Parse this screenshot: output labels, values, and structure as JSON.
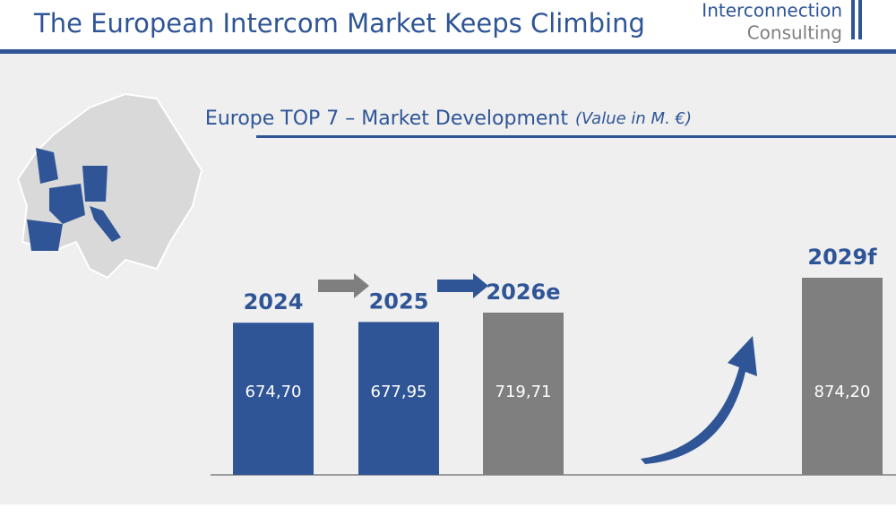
{
  "header": {
    "title": "The European Intercom Market Keeps Climbing",
    "logo_line1": "Interconnection",
    "logo_line2": "Consulting"
  },
  "chart_data": {
    "type": "bar",
    "title": "Europe TOP 7 – Market Development",
    "subtitle": "(Value in M. €)",
    "categories": [
      "2024",
      "2025",
      "2026e",
      "2029f"
    ],
    "values": [
      674.7,
      677.95,
      719.71,
      874.2
    ],
    "value_labels": [
      "674,70",
      "677,95",
      "719,71",
      "874,20"
    ],
    "colors": [
      "#2f5597",
      "#2f5597",
      "#7f7f7f",
      "#7f7f7f"
    ]
  }
}
